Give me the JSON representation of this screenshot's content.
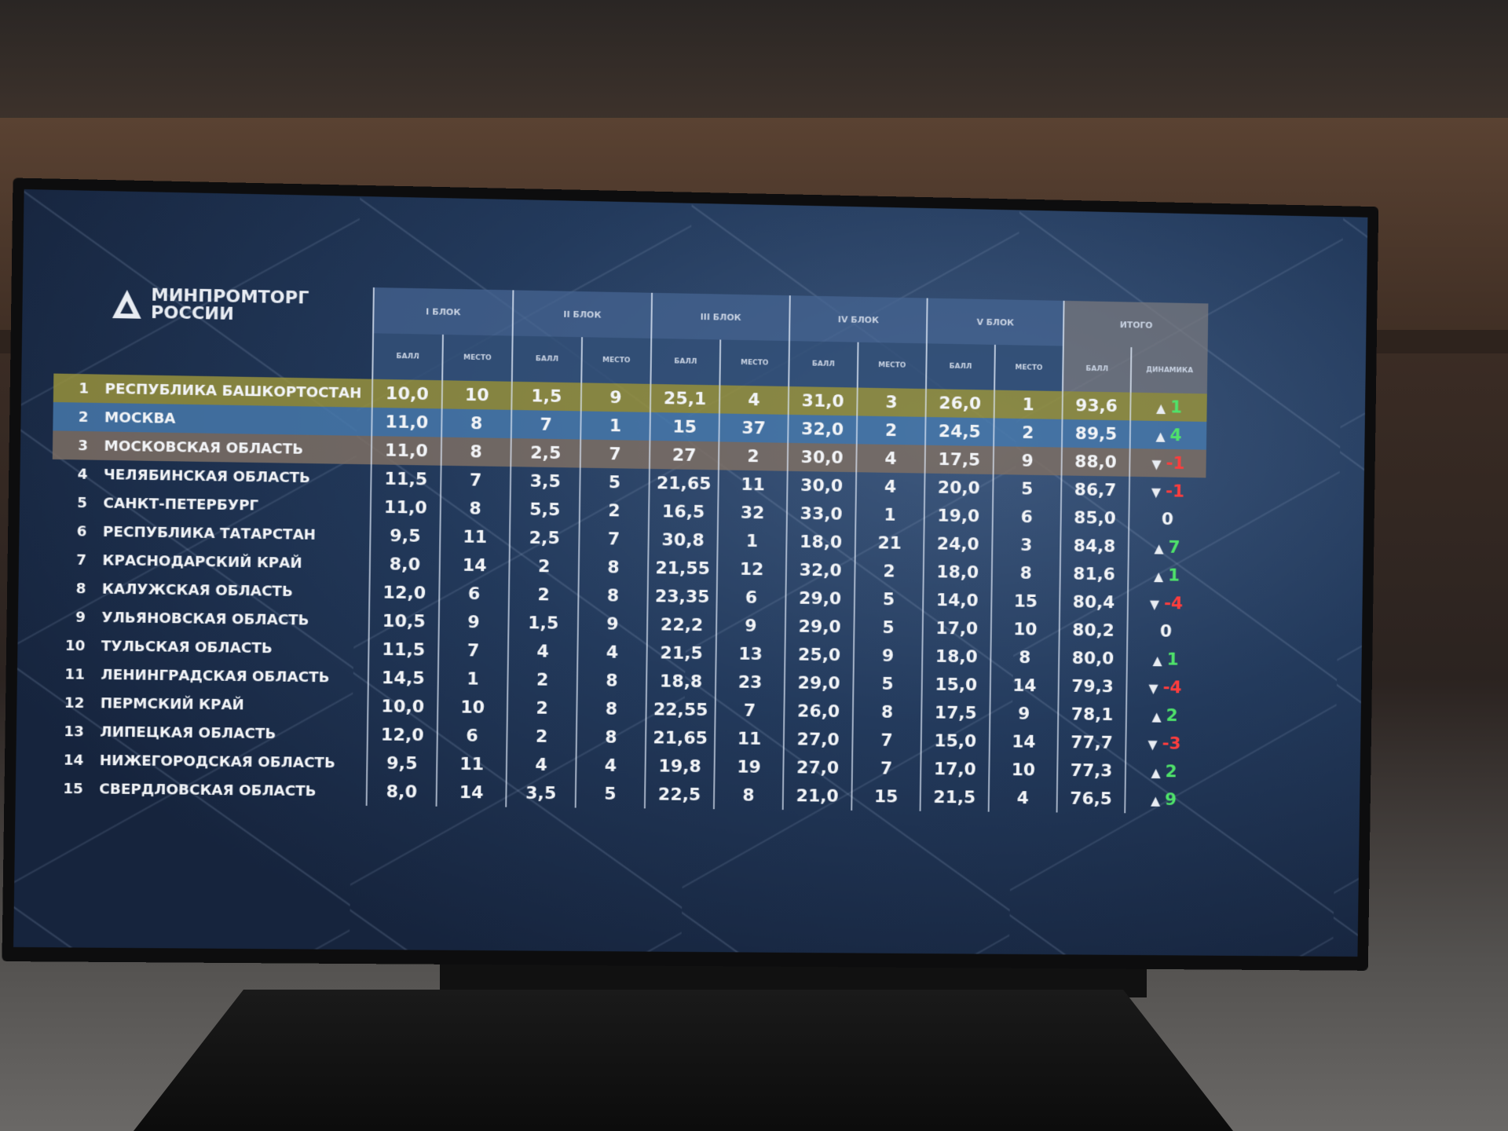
{
  "logo": [
    "МИНПРОМТОРГ",
    "РОССИИ"
  ],
  "table": {
    "groups": [
      "I БЛОК",
      "II БЛОК",
      "III БЛОК",
      "IV БЛОК",
      "V БЛОК",
      "ИТОГО"
    ],
    "subheaders": [
      "БАЛЛ",
      "МЕСТО",
      "БАЛЛ",
      "МЕСТО",
      "БАЛЛ",
      "МЕСТО",
      "БАЛЛ",
      "МЕСТО",
      "БАЛЛ",
      "МЕСТО",
      "БАЛЛ",
      "ДИНАМИКА"
    ],
    "rows": [
      [
        1,
        "РЕСПУБЛИКА БАШКОРТОСТАН",
        "10,0",
        "10",
        "1,5",
        "9",
        "25,1",
        "4",
        "31,0",
        "3",
        "26,0",
        "1",
        "93,6",
        "1"
      ],
      [
        2,
        "МОСКВА",
        "11,0",
        "8",
        "7",
        "1",
        "15",
        "37",
        "32,0",
        "2",
        "24,5",
        "2",
        "89,5",
        "4"
      ],
      [
        3,
        "МОСКОВСКАЯ ОБЛАСТЬ",
        "11,0",
        "8",
        "2,5",
        "7",
        "27",
        "2",
        "30,0",
        "4",
        "17,5",
        "9",
        "88,0",
        "-1"
      ],
      [
        4,
        "ЧЕЛЯБИНСКАЯ ОБЛАСТЬ",
        "11,5",
        "7",
        "3,5",
        "5",
        "21,65",
        "11",
        "30,0",
        "4",
        "20,0",
        "5",
        "86,7",
        "-1"
      ],
      [
        5,
        "САНКТ-ПЕТЕРБУРГ",
        "11,0",
        "8",
        "5,5",
        "2",
        "16,5",
        "32",
        "33,0",
        "1",
        "19,0",
        "6",
        "85,0",
        "0"
      ],
      [
        6,
        "РЕСПУБЛИКА ТАТАРСТАН",
        "9,5",
        "11",
        "2,5",
        "7",
        "30,8",
        "1",
        "18,0",
        "21",
        "24,0",
        "3",
        "84,8",
        "7"
      ],
      [
        7,
        "КРАСНОДАРСКИЙ КРАЙ",
        "8,0",
        "14",
        "2",
        "8",
        "21,55",
        "12",
        "32,0",
        "2",
        "18,0",
        "8",
        "81,6",
        "1"
      ],
      [
        8,
        "КАЛУЖСКАЯ ОБЛАСТЬ",
        "12,0",
        "6",
        "2",
        "8",
        "23,35",
        "6",
        "29,0",
        "5",
        "14,0",
        "15",
        "80,4",
        "-4"
      ],
      [
        9,
        "УЛЬЯНОВСКАЯ ОБЛАСТЬ",
        "10,5",
        "9",
        "1,5",
        "9",
        "22,2",
        "9",
        "29,0",
        "5",
        "17,0",
        "10",
        "80,2",
        "0"
      ],
      [
        10,
        "ТУЛЬСКАЯ ОБЛАСТЬ",
        "11,5",
        "7",
        "4",
        "4",
        "21,5",
        "13",
        "25,0",
        "9",
        "18,0",
        "8",
        "80,0",
        "1"
      ],
      [
        11,
        "ЛЕНИНГРАДСКАЯ ОБЛАСТЬ",
        "14,5",
        "1",
        "2",
        "8",
        "18,8",
        "23",
        "29,0",
        "5",
        "15,0",
        "14",
        "79,3",
        "-4"
      ],
      [
        12,
        "ПЕРМСКИЙ КРАЙ",
        "10,0",
        "10",
        "2",
        "8",
        "22,55",
        "7",
        "26,0",
        "8",
        "17,5",
        "9",
        "78,1",
        "2"
      ],
      [
        13,
        "ЛИПЕЦКАЯ ОБЛАСТЬ",
        "12,0",
        "6",
        "2",
        "8",
        "21,65",
        "11",
        "27,0",
        "7",
        "15,0",
        "14",
        "77,7",
        "-3"
      ],
      [
        14,
        "НИЖЕГОРОДСКАЯ ОБЛАСТЬ",
        "9,5",
        "11",
        "4",
        "4",
        "19,8",
        "19",
        "27,0",
        "7",
        "17,0",
        "10",
        "77,3",
        "2"
      ],
      [
        15,
        "СВЕРДЛОВСКАЯ ОБЛАСТЬ",
        "8,0",
        "14",
        "3,5",
        "5",
        "22,5",
        "8",
        "21,0",
        "15",
        "21,5",
        "4",
        "76,5",
        "9"
      ]
    ]
  }
}
